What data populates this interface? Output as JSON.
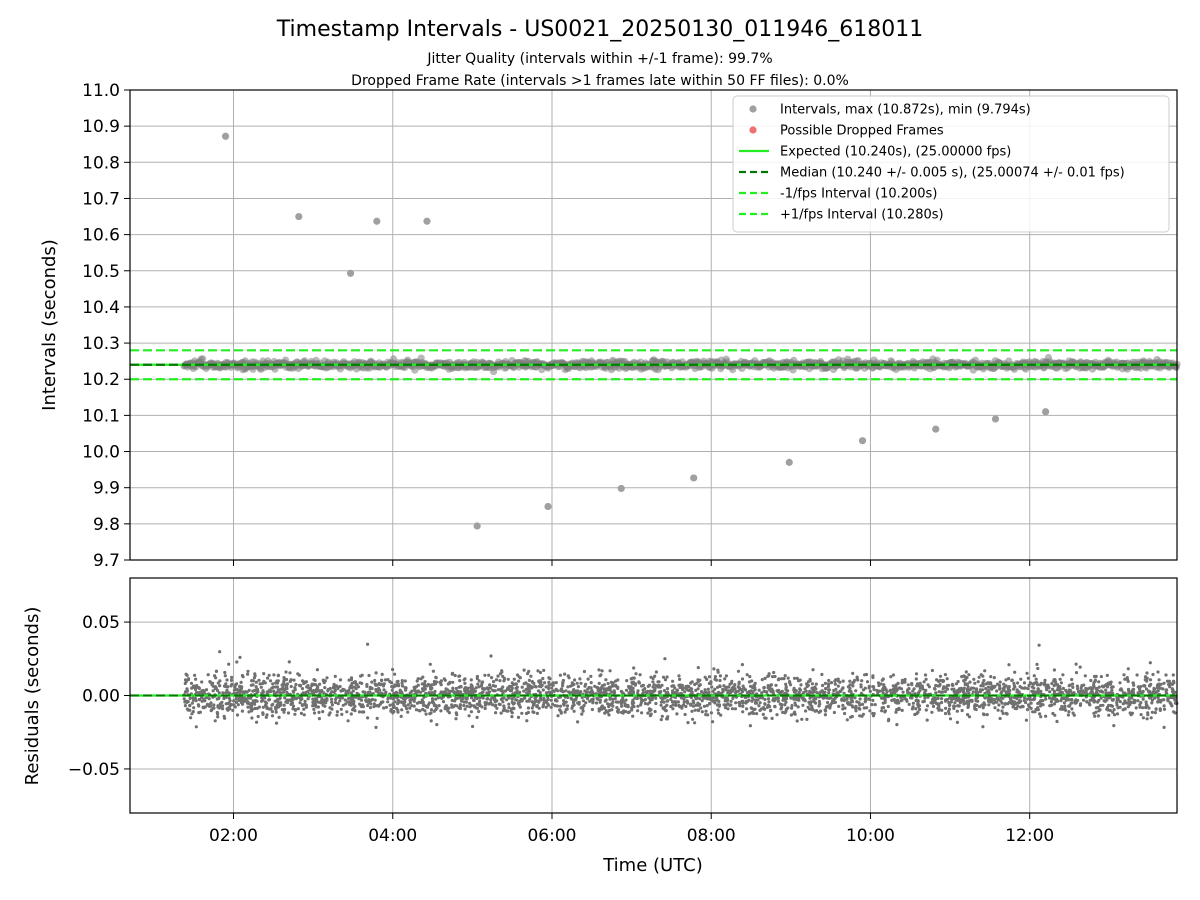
{
  "chart_data": {
    "type": "scatter",
    "title": "Timestamp Intervals - US0021_20250130_011946_618011",
    "subtitle_lines": [
      "Jitter Quality (intervals within +/-1 frame): 99.7%",
      "Dropped Frame Rate (intervals >1 frames late within 50 FF files): 0.0%"
    ],
    "x_axis": {
      "label": "Time (UTC)",
      "range_hours": [
        0.7,
        13.85
      ],
      "ticks": [
        {
          "v": 2,
          "label": "02:00"
        },
        {
          "v": 4,
          "label": "04:00"
        },
        {
          "v": 6,
          "label": "06:00"
        },
        {
          "v": 8,
          "label": "08:00"
        },
        {
          "v": 10,
          "label": "10:00"
        },
        {
          "v": 12,
          "label": "12:00"
        }
      ],
      "grid": true
    },
    "top_panel": {
      "ylabel": "Intervals (seconds)",
      "ylim": [
        9.7,
        11.0
      ],
      "yticks": [
        {
          "v": 9.7,
          "label": "9.7"
        },
        {
          "v": 9.8,
          "label": "9.8"
        },
        {
          "v": 9.9,
          "label": "9.9"
        },
        {
          "v": 10.0,
          "label": "10.0"
        },
        {
          "v": 10.1,
          "label": "10.1"
        },
        {
          "v": 10.2,
          "label": "10.2"
        },
        {
          "v": 10.3,
          "label": "10.3"
        },
        {
          "v": 10.4,
          "label": "10.4"
        },
        {
          "v": 10.5,
          "label": "10.5"
        },
        {
          "v": 10.6,
          "label": "10.6"
        },
        {
          "v": 10.7,
          "label": "10.7"
        },
        {
          "v": 10.8,
          "label": "10.8"
        },
        {
          "v": 10.9,
          "label": "10.9"
        },
        {
          "v": 11.0,
          "label": "11.0"
        }
      ],
      "grid": true,
      "legend": {
        "position": "top-right",
        "entries": [
          {
            "label": "Intervals, max (10.872s), min (9.794s)",
            "kind": "marker",
            "color": "#a0a0a0"
          },
          {
            "label": "Possible Dropped Frames",
            "kind": "marker",
            "color": "#f07070"
          },
          {
            "label": "Expected (10.240s), (25.00000 fps)",
            "kind": "line",
            "color": "#22ee22",
            "dash": "solid"
          },
          {
            "label": "Median (10.240 +/- 0.005 s), (25.00074 +/- 0.01 fps)",
            "kind": "line",
            "color": "#007700",
            "dash": "dashed"
          },
          {
            "label": "-1/fps Interval (10.200s)",
            "kind": "line",
            "color": "#22ee22",
            "dash": "dashed"
          },
          {
            "label": "+1/fps Interval (10.280s)",
            "kind": "line",
            "color": "#22ee22",
            "dash": "dashed"
          }
        ]
      },
      "reference_lines": [
        {
          "name": "expected",
          "y": 10.24,
          "color": "#22ee22",
          "dash": "solid"
        },
        {
          "name": "median",
          "y": 10.24,
          "color": "#007700",
          "dash": "dashed"
        },
        {
          "name": "minus-1-fps",
          "y": 10.2,
          "color": "#22ee22",
          "dash": "dashed"
        },
        {
          "name": "plus-1-fps",
          "y": 10.28,
          "color": "#22ee22",
          "dash": "dashed"
        }
      ],
      "band": {
        "x_start": 1.38,
        "x_end": 13.85,
        "center": 10.24,
        "jitter": 0.01,
        "color": "#808080"
      },
      "outliers": [
        {
          "x": 1.9,
          "y": 10.872
        },
        {
          "x": 2.82,
          "y": 10.65
        },
        {
          "x": 3.47,
          "y": 10.493
        },
        {
          "x": 3.8,
          "y": 10.637
        },
        {
          "x": 4.43,
          "y": 10.637
        },
        {
          "x": 5.06,
          "y": 9.794
        },
        {
          "x": 5.95,
          "y": 9.848
        },
        {
          "x": 6.87,
          "y": 9.898
        },
        {
          "x": 7.78,
          "y": 9.927
        },
        {
          "x": 8.98,
          "y": 9.97
        },
        {
          "x": 9.9,
          "y": 10.03
        },
        {
          "x": 10.82,
          "y": 10.062
        },
        {
          "x": 11.57,
          "y": 10.09
        },
        {
          "x": 12.2,
          "y": 10.11
        }
      ]
    },
    "bottom_panel": {
      "ylabel": "Residuals (seconds)",
      "ylim": [
        -0.08,
        0.08
      ],
      "yticks": [
        {
          "v": 0.05,
          "label": "0.05"
        },
        {
          "v": 0.0,
          "label": "0.00"
        },
        {
          "v": -0.05,
          "label": "−0.05"
        }
      ],
      "grid": true,
      "zero_line": {
        "y": 0.0,
        "color": "#22ee22",
        "dash": "solid"
      },
      "median_line": {
        "y": 0.0,
        "color": "#007700",
        "dash": "dashed"
      },
      "points": {
        "x_start": 1.38,
        "x_end": 13.85,
        "count": 3600,
        "std": 0.007,
        "color": "#707070"
      }
    }
  }
}
